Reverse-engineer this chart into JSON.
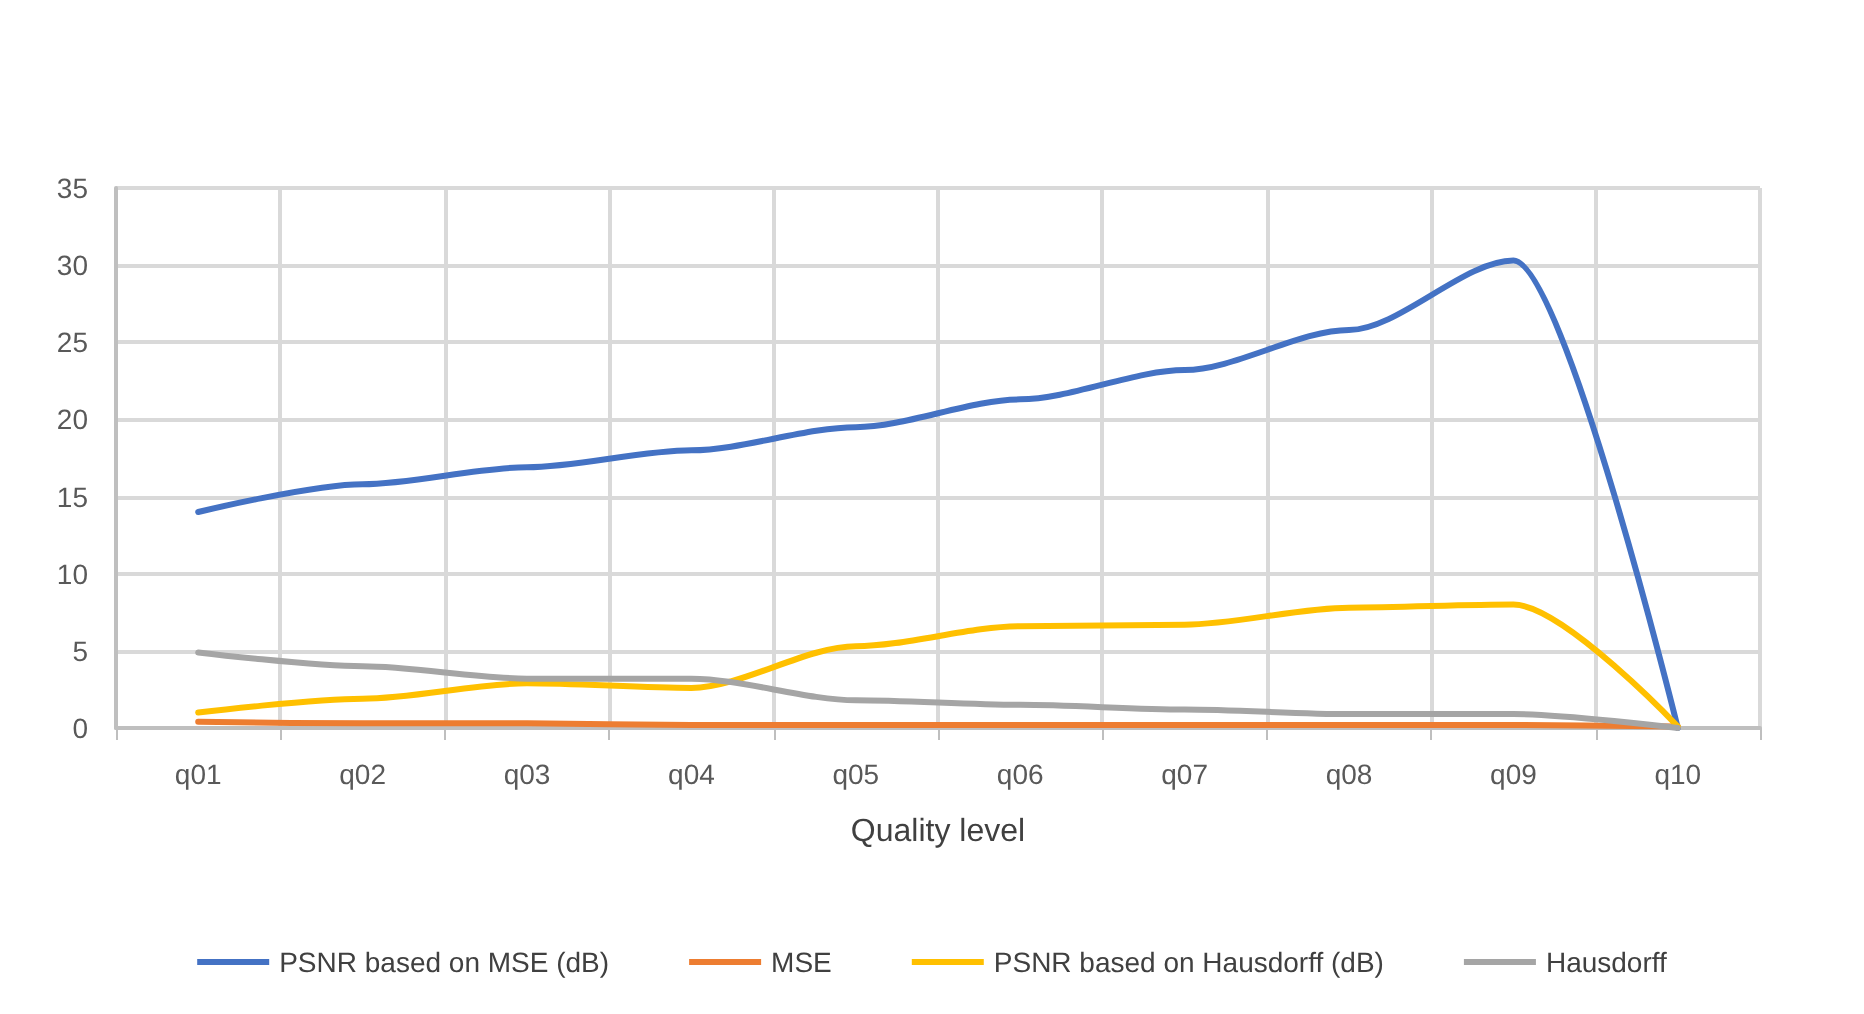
{
  "chart_data": {
    "type": "line",
    "xlabel": "Quality level",
    "categories": [
      "q01",
      "q02",
      "q03",
      "q04",
      "q05",
      "q06",
      "q07",
      "q08",
      "q09",
      "q10"
    ],
    "series": [
      {
        "name": "PSNR based on MSE (dB)",
        "color": "#4472c4",
        "values": [
          14.0,
          15.8,
          16.9,
          18.0,
          19.5,
          21.3,
          23.2,
          25.8,
          30.3,
          0
        ]
      },
      {
        "name": "MSE",
        "color": "#ed7d31",
        "values": [
          0.4,
          0.3,
          0.3,
          0.2,
          0.2,
          0.2,
          0.2,
          0.2,
          0.2,
          0.1
        ]
      },
      {
        "name": "PSNR based on Hausdorff (dB)",
        "color": "#ffc000",
        "values": [
          1.0,
          1.9,
          2.9,
          2.6,
          5.3,
          6.6,
          6.7,
          7.8,
          8.0,
          0.1
        ]
      },
      {
        "name": "Hausdorff",
        "color": "#a5a5a5",
        "values": [
          4.9,
          4.0,
          3.2,
          3.2,
          1.8,
          1.5,
          1.2,
          0.9,
          0.9,
          0
        ]
      }
    ],
    "ylim": [
      0,
      35
    ],
    "yticks": [
      0,
      5,
      10,
      15,
      20,
      25,
      30,
      35
    ],
    "grid": true,
    "legend": "bottom",
    "marker": "none",
    "line_style": "solid"
  }
}
